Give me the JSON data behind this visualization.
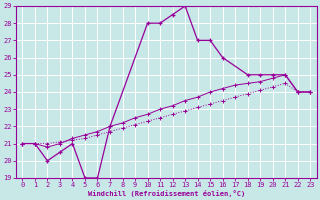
{
  "xlabel": "Windchill (Refroidissement éolien,°C)",
  "xlim": [
    -0.5,
    23.5
  ],
  "ylim": [
    19,
    29
  ],
  "xticks": [
    0,
    1,
    2,
    3,
    4,
    5,
    6,
    7,
    8,
    9,
    10,
    11,
    12,
    13,
    14,
    15,
    16,
    17,
    18,
    19,
    20,
    21,
    22,
    23
  ],
  "yticks": [
    19,
    20,
    21,
    22,
    23,
    24,
    25,
    26,
    27,
    28,
    29
  ],
  "background_color": "#c8e8e8",
  "grid_color": "#aacccc",
  "line_color": "#990099",
  "line1_x": [
    0,
    1,
    2,
    3,
    4,
    5,
    6,
    7,
    10,
    11,
    12,
    13,
    14,
    15,
    16,
    18,
    19,
    20,
    21,
    22,
    23
  ],
  "line1_y": [
    21.0,
    21.0,
    20.0,
    20.5,
    21.0,
    19.0,
    19.0,
    22.0,
    28.0,
    28.0,
    28.5,
    29.0,
    27.0,
    27.0,
    26.0,
    25.0,
    25.0,
    25.0,
    25.0,
    24.0,
    24.0
  ],
  "line2_x": [
    0,
    1,
    2,
    3,
    4,
    5,
    6,
    7,
    8,
    9,
    10,
    11,
    12,
    13,
    14,
    15,
    16,
    17,
    18,
    19,
    20,
    21,
    22,
    23
  ],
  "line2_y": [
    21.0,
    21.0,
    21.0,
    21.1,
    21.2,
    21.3,
    21.5,
    21.7,
    21.9,
    22.1,
    22.3,
    22.5,
    22.7,
    22.9,
    23.1,
    23.3,
    23.5,
    23.7,
    23.9,
    24.1,
    24.3,
    24.5,
    24.0,
    24.0
  ],
  "line3_x": [
    0,
    1,
    2,
    3,
    4,
    5,
    6,
    7,
    8,
    9,
    10,
    11,
    12,
    13,
    14,
    15,
    16,
    17,
    18,
    19,
    20,
    21,
    22,
    23
  ],
  "line3_y": [
    21.0,
    21.0,
    20.8,
    21.0,
    21.3,
    21.5,
    21.7,
    22.0,
    22.2,
    22.5,
    22.7,
    23.0,
    23.2,
    23.5,
    23.7,
    24.0,
    24.2,
    24.4,
    24.5,
    24.6,
    24.8,
    25.0,
    24.0,
    24.0
  ]
}
